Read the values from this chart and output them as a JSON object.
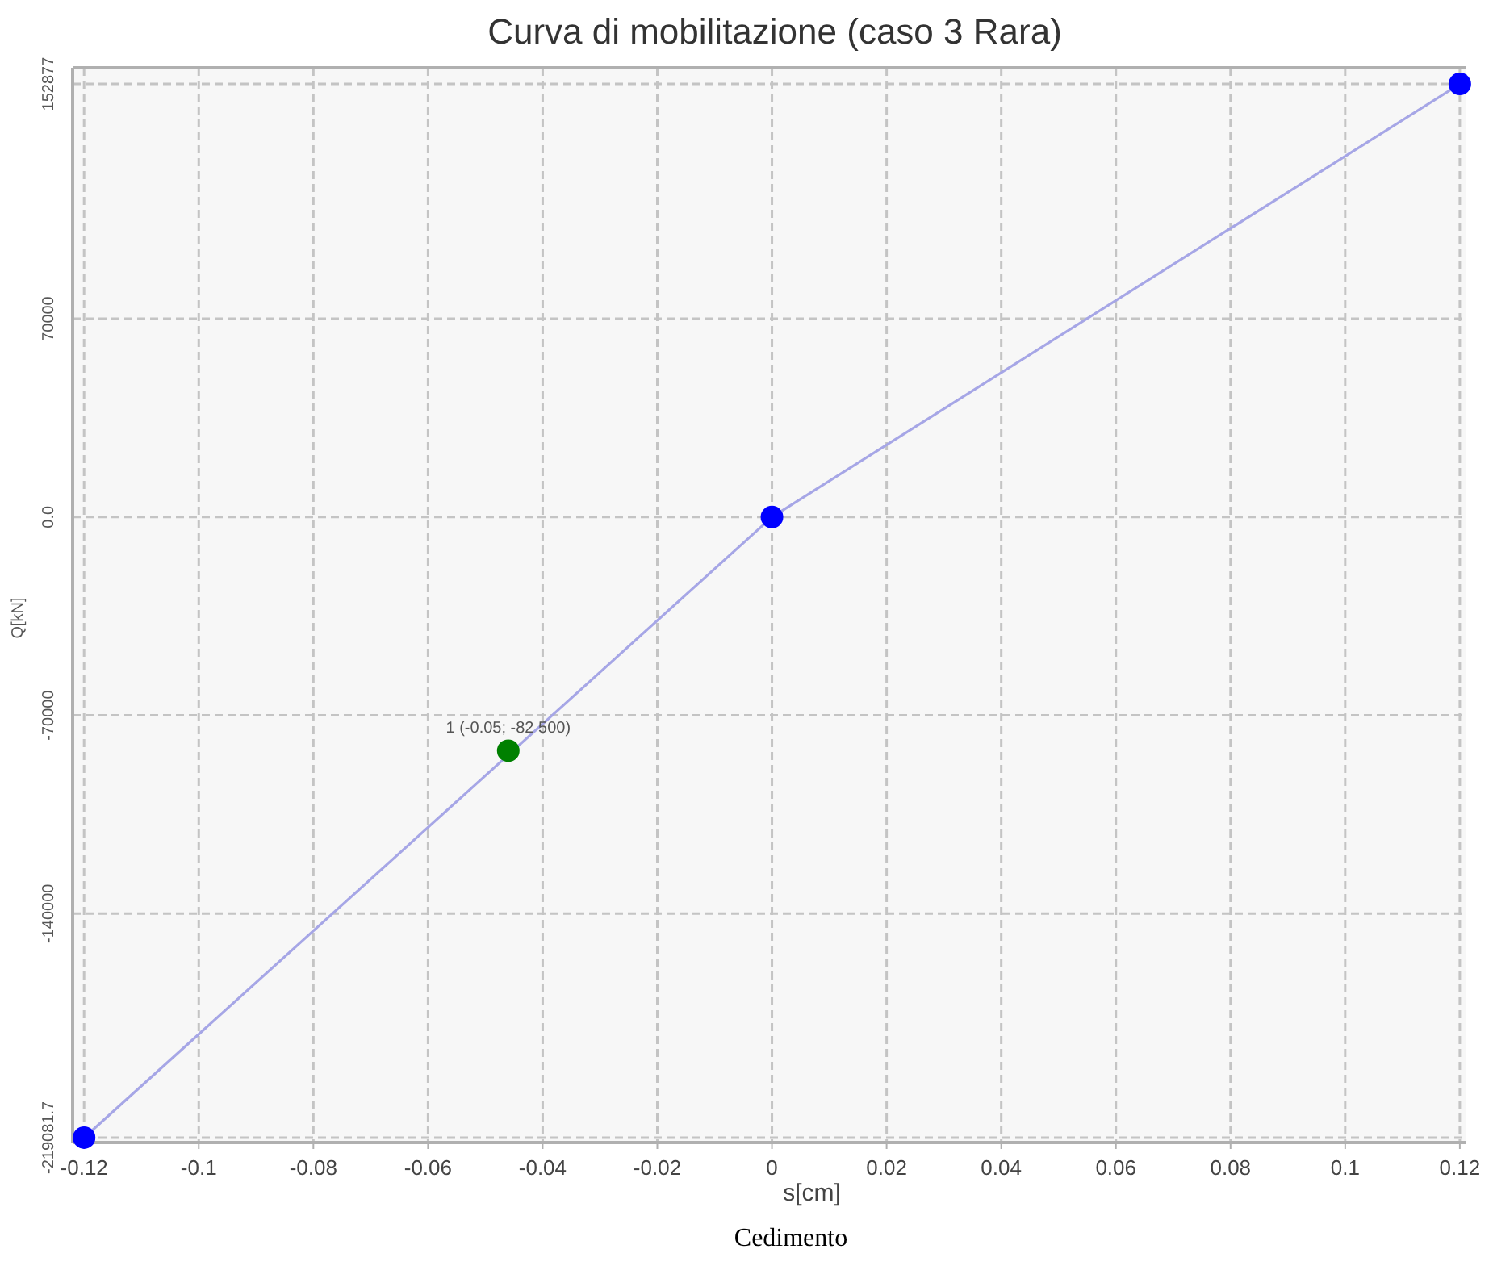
{
  "chart_data": {
    "type": "line",
    "title": "Curva di mobilitazione (caso 3 Rara)",
    "xlabel": "s[cm]",
    "ylabel": "Q[kN]",
    "series": [
      {
        "color": "#a6a6e6",
        "x": [
          -0.12,
          0,
          0.12
        ],
        "values": [
          -219081.7,
          0,
          152877
        ],
        "marker": "none"
      },
      {
        "type": "scatter",
        "color": "#0000ff",
        "x": [
          -0.12,
          0,
          0.12
        ],
        "values": [
          -219081.7,
          0,
          152877
        ],
        "marker": "circle"
      },
      {
        "type": "scatter",
        "color": "#008000",
        "x": [
          -0.046
        ],
        "values": [
          -82500
        ],
        "marker": "circle"
      }
    ],
    "xlim": [
      -0.122,
      0.121
    ],
    "xticks": [
      -0.12,
      -0.1,
      -0.08,
      -0.06,
      -0.04,
      -0.02,
      0,
      0.02,
      0.04,
      0.06,
      0.08,
      0.1,
      0.12
    ],
    "ylim": [
      -220800,
      158600
    ],
    "yticks": [
      -219081.7,
      -140000,
      -70000,
      {
        "value": 0,
        "label": "0.0"
      },
      70000,
      152877
    ],
    "grid": true,
    "annotations": [
      {
        "text": "1 (-0.05; -82 500)",
        "x": -0.046,
        "y": -82500
      },
      "Cedimento"
    ]
  }
}
